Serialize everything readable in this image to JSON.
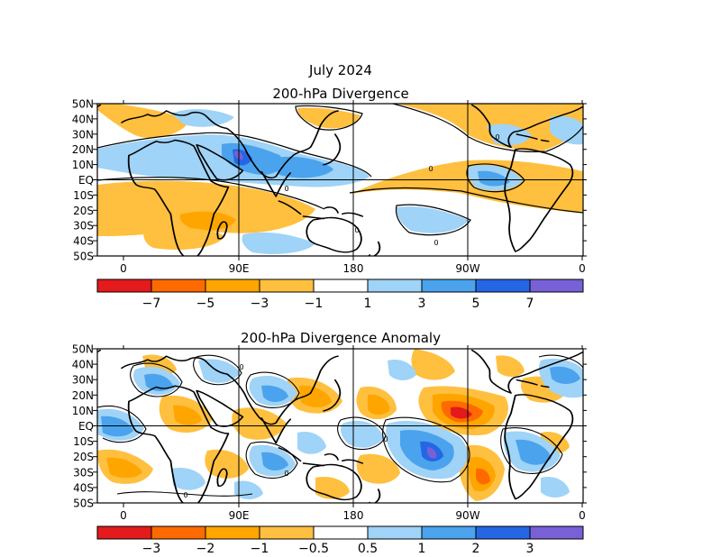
{
  "main_title": "July 2024",
  "lat_labels": [
    "50N",
    "40N",
    "30N",
    "20N",
    "10N",
    "EQ",
    "10S",
    "20S",
    "30S",
    "40S",
    "50S"
  ],
  "lon_labels": [
    "0",
    "90E",
    "180",
    "90W",
    "0"
  ],
  "contour_zero_label": "0",
  "colors": {
    "neg4": "#e41a1c",
    "neg3": "#ff6a00",
    "neg2": "#ffa500",
    "neg1": "#ffbf3f",
    "zero": "#ffffff",
    "pos1": "#9fd3f7",
    "pos2": "#4aa3ec",
    "pos3": "#2566e5",
    "pos4": "#7860d6",
    "land_outline": "#000000"
  },
  "panels": [
    {
      "id": "divergence",
      "title": "200-hPa Divergence",
      "colorbar_labels": [
        "−7",
        "−5",
        "−3",
        "−1",
        "1",
        "3",
        "5",
        "7"
      ]
    },
    {
      "id": "anomaly",
      "title": "200-hPa Divergence Anomaly",
      "colorbar_labels": [
        "−3",
        "−2",
        "−1",
        "−0.5",
        "0.5",
        "1",
        "2",
        "3"
      ]
    }
  ]
}
